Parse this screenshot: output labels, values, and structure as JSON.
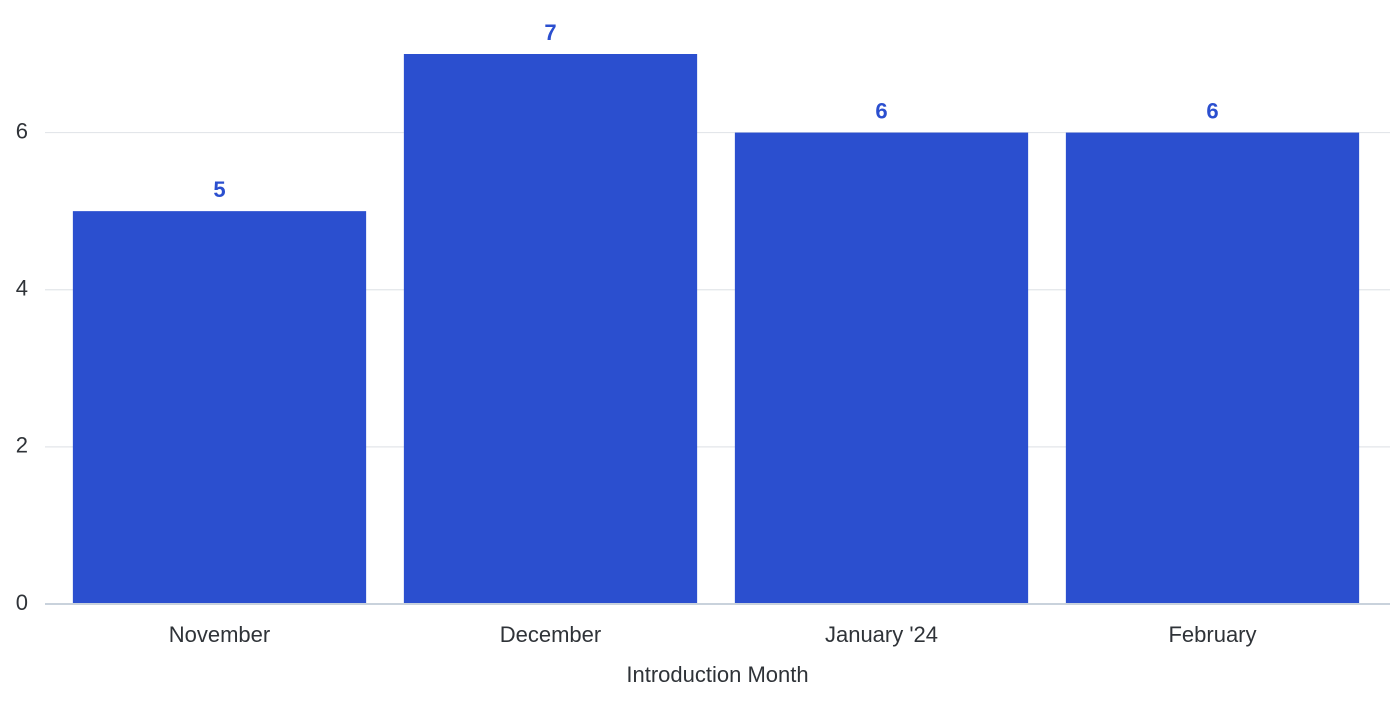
{
  "chart_data": {
    "type": "bar",
    "categories": [
      "November",
      "December",
      "January '24",
      "February"
    ],
    "values": [
      5,
      7,
      6,
      6
    ],
    "xlabel": "Introduction Month",
    "ylabel": "",
    "ylim": [
      0,
      7
    ],
    "yticks": [
      0,
      2,
      4,
      6
    ],
    "grid": true,
    "data_labels": true,
    "bar_color": "#2b4fcf",
    "label_color": "#2b4fcf"
  }
}
